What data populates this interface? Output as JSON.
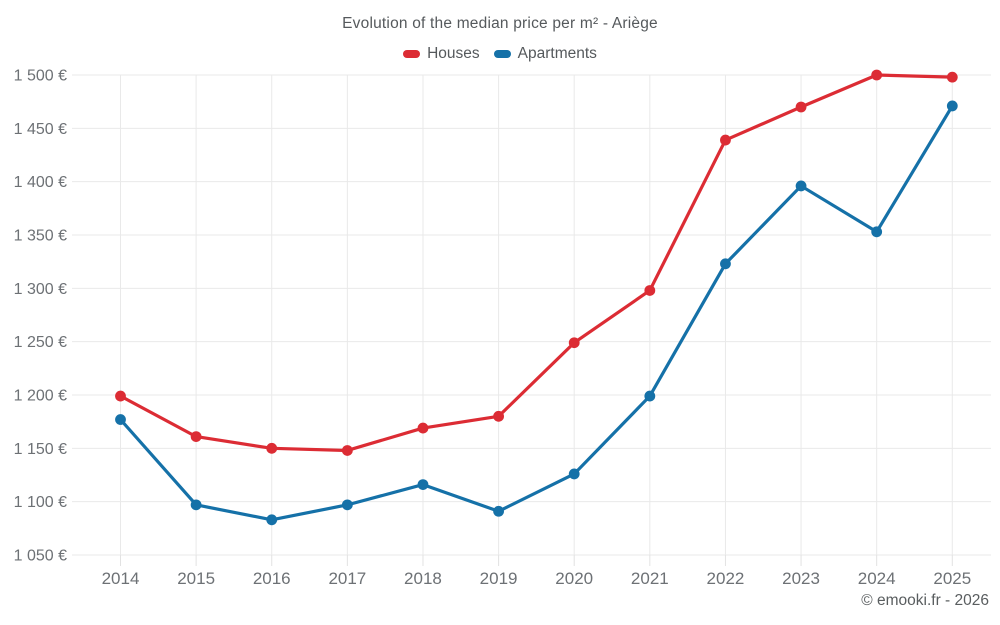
{
  "page": {
    "title": "Evolution of the median price per m² - Ariège",
    "footer_credit": "© emooki.fr - 2026"
  },
  "legend": {
    "items": [
      {
        "label": "Houses",
        "color": "#dc2c34"
      },
      {
        "label": "Apartments",
        "color": "#1571a8"
      }
    ]
  },
  "colors": {
    "houses": "#dc2c34",
    "apartments": "#1571a8",
    "gridline": "#e9e9e9",
    "tick": "#e2e2e2",
    "axis_text": "#6d7175",
    "title_text": "#55595c"
  },
  "chart_data": {
    "type": "line",
    "title": "Evolution of the median price per m² - Ariège",
    "xlabel": "",
    "ylabel": "",
    "x_labels": [
      "2014",
      "2015",
      "2016",
      "2017",
      "2018",
      "2019",
      "2020",
      "2021",
      "2022",
      "2023",
      "2024",
      "2025"
    ],
    "series": [
      {
        "name": "Houses",
        "color": "#dc2c34",
        "values": [
          1199,
          1161,
          1150,
          1148,
          1169,
          1180,
          1249,
          1298,
          1439,
          1470,
          1500,
          1498
        ]
      },
      {
        "name": "Apartments",
        "color": "#1571a8",
        "values": [
          1177,
          1097,
          1083,
          1097,
          1116,
          1091,
          1126,
          1199,
          1323,
          1396,
          1353,
          1471
        ]
      }
    ],
    "ylim": [
      1050,
      1500
    ],
    "y_ticks": [
      {
        "value": 1500,
        "label": "1 500 €"
      },
      {
        "value": 1450,
        "label": "1 450 €"
      },
      {
        "value": 1400,
        "label": "1 400 €"
      },
      {
        "value": 1350,
        "label": "1 350 €"
      },
      {
        "value": 1300,
        "label": "1 300 €"
      },
      {
        "value": 1250,
        "label": "1 250 €"
      },
      {
        "value": 1200,
        "label": "1 200 €"
      },
      {
        "value": 1150,
        "label": "1 150 €"
      },
      {
        "value": 1100,
        "label": "1 100 €"
      },
      {
        "value": 1050,
        "label": "1 050 €"
      }
    ],
    "grid": true,
    "legend_position": "top",
    "currency_suffix": " €"
  }
}
